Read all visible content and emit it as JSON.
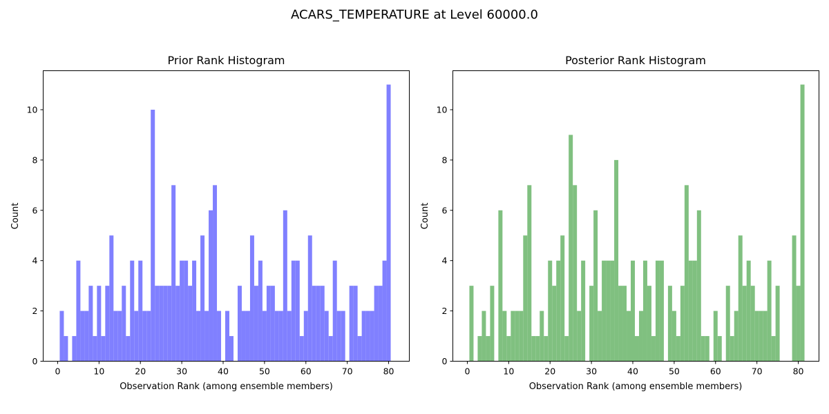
{
  "figure": {
    "title": "ACARS_TEMPERATURE at Level 60000.0"
  },
  "chart_data": [
    {
      "type": "bar",
      "title": "Prior Rank Histogram",
      "xlabel": "Observation Rank (among ensemble members)",
      "ylabel": "Count",
      "color": "#8080ff",
      "x": [
        1,
        2,
        3,
        4,
        5,
        6,
        7,
        8,
        9,
        10,
        11,
        12,
        13,
        14,
        15,
        16,
        17,
        18,
        19,
        20,
        21,
        22,
        23,
        24,
        25,
        26,
        27,
        28,
        29,
        30,
        31,
        32,
        33,
        34,
        35,
        36,
        37,
        38,
        39,
        40,
        41,
        42,
        43,
        44,
        45,
        46,
        47,
        48,
        49,
        50,
        51,
        52,
        53,
        54,
        55,
        56,
        57,
        58,
        59,
        60,
        61,
        62,
        63,
        64,
        65,
        66,
        67,
        68,
        69,
        70,
        71,
        72,
        73,
        74,
        75,
        76,
        77,
        78,
        79,
        80,
        81
      ],
      "values": [
        2,
        1,
        0,
        1,
        4,
        2,
        2,
        3,
        1,
        3,
        1,
        3,
        5,
        2,
        2,
        3,
        1,
        4,
        2,
        4,
        2,
        2,
        10,
        3,
        3,
        3,
        3,
        7,
        3,
        4,
        4,
        3,
        4,
        2,
        5,
        2,
        6,
        7,
        2,
        0,
        2,
        1,
        0,
        3,
        2,
        2,
        5,
        3,
        4,
        2,
        3,
        3,
        2,
        2,
        6,
        2,
        4,
        4,
        1,
        2,
        5,
        3,
        3,
        3,
        2,
        1,
        4,
        2,
        2,
        0,
        3,
        3,
        1,
        2,
        2,
        2,
        3,
        3,
        4,
        11,
        0
      ],
      "xlim": [
        -3.5,
        85
      ],
      "ylim": [
        0,
        11.55
      ],
      "xticks": [
        0,
        10,
        20,
        30,
        40,
        50,
        60,
        70,
        80
      ],
      "xtick_labels": [
        "0",
        "10",
        "20",
        "30",
        "40",
        "50",
        "60",
        "70",
        "80"
      ],
      "yticks": [
        0,
        2,
        4,
        6,
        8,
        10
      ],
      "ytick_labels": [
        "0",
        "2",
        "4",
        "6",
        "8",
        "10"
      ],
      "grid": false
    },
    {
      "type": "bar",
      "title": "Posterior Rank Histogram",
      "xlabel": "Observation Rank (among ensemble members)",
      "ylabel": "Count",
      "color": "#80c080",
      "x": [
        1,
        2,
        3,
        4,
        5,
        6,
        7,
        8,
        9,
        10,
        11,
        12,
        13,
        14,
        15,
        16,
        17,
        18,
        19,
        20,
        21,
        22,
        23,
        24,
        25,
        26,
        27,
        28,
        29,
        30,
        31,
        32,
        33,
        34,
        35,
        36,
        37,
        38,
        39,
        40,
        41,
        42,
        43,
        44,
        45,
        46,
        47,
        48,
        49,
        50,
        51,
        52,
        53,
        54,
        55,
        56,
        57,
        58,
        59,
        60,
        61,
        62,
        63,
        64,
        65,
        66,
        67,
        68,
        69,
        70,
        71,
        72,
        73,
        74,
        75,
        76,
        77,
        78,
        79,
        80,
        81
      ],
      "values": [
        3,
        0,
        1,
        2,
        1,
        3,
        0,
        6,
        2,
        1,
        2,
        2,
        2,
        5,
        7,
        1,
        1,
        2,
        1,
        4,
        3,
        4,
        5,
        1,
        9,
        7,
        2,
        4,
        0,
        3,
        6,
        2,
        4,
        4,
        4,
        8,
        3,
        3,
        2,
        4,
        1,
        2,
        4,
        3,
        1,
        4,
        4,
        0,
        3,
        2,
        1,
        3,
        7,
        4,
        4,
        6,
        1,
        1,
        0,
        2,
        1,
        0,
        3,
        1,
        2,
        5,
        3,
        4,
        3,
        2,
        2,
        2,
        4,
        1,
        3,
        0,
        0,
        0,
        5,
        3,
        11
      ],
      "xlim": [
        -3.5,
        85
      ],
      "ylim": [
        0,
        11.55
      ],
      "xticks": [
        0,
        10,
        20,
        30,
        40,
        50,
        60,
        70,
        80
      ],
      "xtick_labels": [
        "0",
        "10",
        "20",
        "30",
        "40",
        "50",
        "60",
        "70",
        "80"
      ],
      "yticks": [
        0,
        2,
        4,
        6,
        8,
        10
      ],
      "ytick_labels": [
        "0",
        "2",
        "4",
        "6",
        "8",
        "10"
      ],
      "grid": false
    }
  ]
}
